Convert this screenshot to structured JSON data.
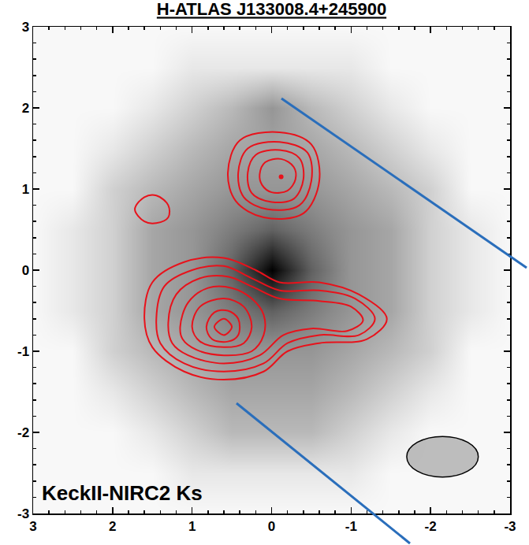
{
  "chart_data": {
    "type": "image_contour",
    "title": "H-ATLAS J133008.4+245900",
    "label": "KeckII-NIRC2 Ks",
    "xlim": [
      3,
      -3
    ],
    "ylim": [
      -3,
      3
    ],
    "xticks": [
      3,
      2,
      1,
      0,
      -1,
      -2,
      -3
    ],
    "yticks": [
      -3,
      -2,
      -1,
      0,
      1,
      2,
      3
    ],
    "grid": false,
    "color": "#e8121b",
    "image": {
      "x": [
        -3,
        -2.5,
        -2,
        -1.5,
        -1,
        -0.5,
        0,
        0.5,
        1,
        1.5,
        2,
        2.5,
        3
      ],
      "y": [
        -3,
        -2.5,
        -2,
        -1.5,
        -1,
        -0.5,
        0,
        0.5,
        1,
        1.5,
        2,
        2.5,
        3
      ],
      "z": [
        [
          0.03,
          0.03,
          0.03,
          0.03,
          0.03,
          0.03,
          0.03,
          0.03,
          0.03,
          0.03,
          0.03,
          0.03,
          0.03
        ],
        [
          0.03,
          0.03,
          0.03,
          0.03,
          0.1,
          0.1,
          0.1,
          0.1,
          0.1,
          0.03,
          0.03,
          0.03,
          0.03
        ],
        [
          0.03,
          0.03,
          0.03,
          0.1,
          0.2,
          0.3,
          0.3,
          0.3,
          0.2,
          0.1,
          0.03,
          0.03,
          0.03
        ],
        [
          0.03,
          0.03,
          0.1,
          0.2,
          0.3,
          0.38,
          0.38,
          0.38,
          0.3,
          0.2,
          0.1,
          0.03,
          0.03
        ],
        [
          0.03,
          0.03,
          0.2,
          0.3,
          0.38,
          0.45,
          0.45,
          0.45,
          0.38,
          0.3,
          0.2,
          0.03,
          0.03
        ],
        [
          0.03,
          0.1,
          0.2,
          0.38,
          0.45,
          0.55,
          0.65,
          0.55,
          0.45,
          0.38,
          0.2,
          0.1,
          0.03
        ],
        [
          0.03,
          0.1,
          0.2,
          0.38,
          0.45,
          0.65,
          1.0,
          0.65,
          0.45,
          0.38,
          0.2,
          0.1,
          0.03
        ],
        [
          0.03,
          0.1,
          0.2,
          0.38,
          0.45,
          0.55,
          0.65,
          0.55,
          0.45,
          0.38,
          0.2,
          0.1,
          0.03
        ],
        [
          0.03,
          0.03,
          0.2,
          0.3,
          0.38,
          0.45,
          0.45,
          0.45,
          0.38,
          0.3,
          0.2,
          0.03,
          0.03
        ],
        [
          0.03,
          0.03,
          0.1,
          0.2,
          0.3,
          0.38,
          0.4,
          0.38,
          0.3,
          0.2,
          0.1,
          0.03,
          0.03
        ],
        [
          0.03,
          0.03,
          0.03,
          0.1,
          0.2,
          0.3,
          0.45,
          0.3,
          0.2,
          0.1,
          0.03,
          0.03,
          0.03
        ],
        [
          0.03,
          0.03,
          0.03,
          0.03,
          0.1,
          0.1,
          0.1,
          0.1,
          0.1,
          0.03,
          0.03,
          0.03,
          0.03
        ],
        [
          0.03,
          0.03,
          0.03,
          0.03,
          0.03,
          0.03,
          0.03,
          0.03,
          0.03,
          0.03,
          0.03,
          0.03,
          0.03
        ]
      ]
    },
    "contours": [
      {
        "x": [
          0.55,
          0.4,
          -0.1,
          -0.5,
          -0.6,
          -0.4,
          0.1,
          0.45
        ],
        "y": [
          1.2,
          1.6,
          1.7,
          1.55,
          1.1,
          0.7,
          0.65,
          0.85
        ]
      },
      {
        "x": [
          0.42,
          0.3,
          -0.1,
          -0.45,
          -0.5,
          -0.35,
          0.05,
          0.35
        ],
        "y": [
          1.2,
          1.5,
          1.58,
          1.45,
          1.1,
          0.8,
          0.75,
          0.9
        ]
      },
      {
        "x": [
          0.3,
          0.2,
          -0.1,
          -0.35,
          -0.4,
          -0.28,
          0.0,
          0.25
        ],
        "y": [
          1.2,
          1.42,
          1.48,
          1.38,
          1.12,
          0.88,
          0.84,
          0.95
        ]
      },
      {
        "x": [
          0.15,
          0.08,
          -0.12,
          -0.28,
          -0.3,
          -0.2,
          0.0,
          0.12
        ],
        "y": [
          1.18,
          1.33,
          1.37,
          1.27,
          1.12,
          0.98,
          0.96,
          1.05
        ]
      },
      {
        "x": [
          1.72,
          1.6,
          1.45,
          1.3,
          1.3,
          1.45,
          1.6
        ],
        "y": [
          0.75,
          0.9,
          0.92,
          0.8,
          0.65,
          0.58,
          0.6
        ]
      },
      {
        "x": [
          1.6,
          1.5,
          1.1,
          0.6,
          0.2,
          -0.1,
          -0.6,
          -1.1,
          -1.45,
          -1.2,
          -0.6,
          -0.2,
          0.1,
          0.6,
          1.1,
          1.5
        ],
        "y": [
          -0.6,
          -0.15,
          0.1,
          0.15,
          0.0,
          -0.15,
          -0.15,
          -0.3,
          -0.6,
          -0.85,
          -0.9,
          -1.0,
          -1.25,
          -1.35,
          -1.25,
          -0.95
        ]
      },
      {
        "x": [
          1.45,
          1.35,
          1.0,
          0.6,
          0.25,
          -0.1,
          -0.6,
          -1.05,
          -1.3,
          -1.1,
          -0.6,
          -0.2,
          0.1,
          0.6,
          1.1,
          1.4
        ],
        "y": [
          -0.6,
          -0.2,
          0.0,
          0.05,
          -0.1,
          -0.25,
          -0.25,
          -0.35,
          -0.6,
          -0.8,
          -0.8,
          -0.9,
          -1.15,
          -1.25,
          -1.15,
          -0.9
        ]
      },
      {
        "x": [
          1.3,
          1.2,
          0.9,
          0.55,
          0.25,
          -0.1,
          -0.6,
          -1.0,
          -1.15,
          -0.95,
          -0.5,
          -0.15,
          0.15,
          0.6,
          1.05,
          1.25
        ],
        "y": [
          -0.65,
          -0.3,
          -0.1,
          -0.08,
          -0.2,
          -0.35,
          -0.38,
          -0.45,
          -0.62,
          -0.75,
          -0.72,
          -0.8,
          -1.05,
          -1.15,
          -1.05,
          -0.9
        ]
      },
      {
        "x": [
          1.15,
          1.05,
          0.8,
          0.5,
          0.25,
          0.1,
          0.1,
          0.25,
          0.6,
          0.95,
          1.12
        ],
        "y": [
          -0.7,
          -0.4,
          -0.22,
          -0.22,
          -0.35,
          -0.55,
          -0.8,
          -1.0,
          -1.05,
          -0.98,
          -0.85
        ]
      },
      {
        "x": [
          1.0,
          0.9,
          0.6,
          0.35,
          0.25,
          0.35,
          0.6,
          0.9
        ],
        "y": [
          -0.7,
          -0.45,
          -0.35,
          -0.45,
          -0.7,
          -0.9,
          -0.95,
          -0.88
        ]
      },
      {
        "x": [
          0.82,
          0.72,
          0.55,
          0.42,
          0.42,
          0.55,
          0.75
        ],
        "y": [
          -0.7,
          -0.52,
          -0.5,
          -0.6,
          -0.8,
          -0.88,
          -0.85
        ]
      },
      {
        "x": [
          0.72,
          0.6,
          0.5,
          0.6
        ],
        "y": [
          -0.7,
          -0.6,
          -0.7,
          -0.8
        ]
      }
    ],
    "peak": {
      "x": -0.12,
      "y": 1.15
    },
    "beam": {
      "x": -2.15,
      "y": -2.3,
      "major": 0.9,
      "minor": 0.5
    }
  }
}
